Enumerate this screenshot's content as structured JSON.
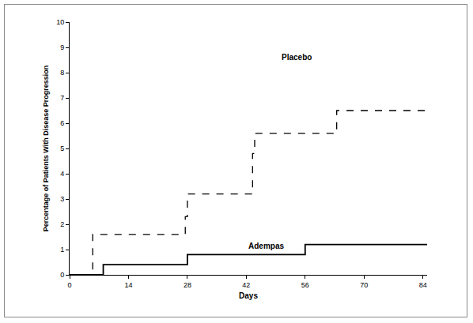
{
  "chart_data": {
    "type": "line",
    "x_label": "Days",
    "y_label": "Percentage of Patients With Disease Progression",
    "xlim": [
      0,
      85
    ],
    "xticks": [
      0,
      14,
      28,
      42,
      56,
      70,
      84
    ],
    "ylim": [
      0,
      10
    ],
    "yticks": [
      0,
      1,
      2,
      3,
      4,
      5,
      6,
      7,
      8,
      9,
      10
    ],
    "grid": false,
    "series": [
      {
        "name": "Placebo",
        "color": "#000000",
        "line_style": "dashed",
        "x": [
          0,
          5.5,
          27.5,
          28,
          43.5,
          44,
          63.5,
          85
        ],
        "values": [
          0,
          1.6,
          2.3,
          3.2,
          4.8,
          5.6,
          6.5,
          6.5
        ]
      },
      {
        "name": "Adempas",
        "color": "#000000",
        "line_style": "solid",
        "x": [
          0,
          8,
          28,
          56,
          85
        ],
        "values": [
          0,
          0.4,
          0.8,
          1.2,
          1.2
        ]
      }
    ]
  }
}
